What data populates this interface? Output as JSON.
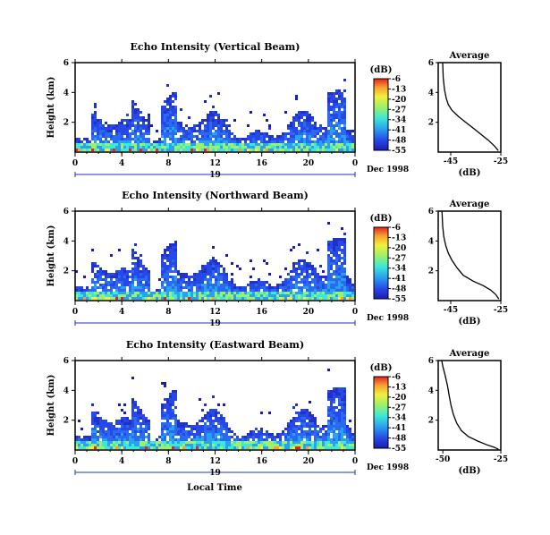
{
  "chart_data": [
    {
      "type": "heatmap",
      "title": "Echo Intensity (Vertical Beam)",
      "ylabel": "Height (km)",
      "xlabel": "",
      "x_ticks": [
        "0",
        "4",
        "8",
        "12",
        "16",
        "20",
        "0"
      ],
      "y_ticks": [
        "2",
        "4",
        "6"
      ],
      "date_label": "19",
      "month_label": "Dec 1998",
      "xlim": [
        0,
        24
      ],
      "ylim": [
        0,
        6
      ],
      "colorbar": {
        "label": "(dB)",
        "ticks": [
          "-6",
          "-13",
          "-20",
          "-27",
          "-34",
          "-41",
          "-48",
          "-55"
        ],
        "range": [
          -55,
          -6
        ]
      },
      "average": {
        "title": "Average",
        "xlabel": "(dB)",
        "x_ticks": [
          "-45",
          "-25"
        ],
        "y_ticks": [
          "2",
          "4",
          "6"
        ],
        "xlim": [
          -50,
          -25
        ],
        "ylim": [
          0,
          6
        ],
        "x": [
          -48.2,
          -48.0,
          -47.5,
          -46.8,
          -46.0,
          -44.5,
          -42.0,
          -39.0,
          -36.0,
          -33.0,
          -30.0,
          -27.5,
          -26.0
        ],
        "y": [
          6.0,
          5.0,
          4.2,
          3.6,
          3.2,
          2.8,
          2.4,
          2.0,
          1.6,
          1.2,
          0.8,
          0.4,
          0.1
        ]
      }
    },
    {
      "type": "heatmap",
      "title": "Echo Intensity (Northward Beam)",
      "ylabel": "Height (km)",
      "xlabel": "",
      "x_ticks": [
        "0",
        "4",
        "8",
        "12",
        "16",
        "20",
        "0"
      ],
      "y_ticks": [
        "2",
        "4",
        "6"
      ],
      "date_label": "19",
      "month_label": "Dec 1998",
      "xlim": [
        0,
        24
      ],
      "ylim": [
        0,
        6
      ],
      "colorbar": {
        "label": "(dB)",
        "ticks": [
          "-6",
          "-13",
          "-20",
          "-27",
          "-34",
          "-41",
          "-48",
          "-55"
        ],
        "range": [
          -55,
          -6
        ]
      },
      "average": {
        "title": "Average",
        "xlabel": "(dB)",
        "x_ticks": [
          "-45",
          "-25"
        ],
        "y_ticks": [
          "2",
          "4",
          "6"
        ],
        "xlim": [
          -50,
          -25
        ],
        "ylim": [
          0,
          6
        ],
        "x": [
          -48.5,
          -48.2,
          -47.8,
          -47.0,
          -46.0,
          -44.5,
          -42.5,
          -40.0,
          -36.0,
          -32.0,
          -29.0,
          -27.0,
          -25.8
        ],
        "y": [
          6.0,
          5.0,
          4.3,
          3.7,
          3.2,
          2.7,
          2.2,
          1.7,
          1.3,
          1.0,
          0.7,
          0.4,
          0.1
        ]
      }
    },
    {
      "type": "heatmap",
      "title": "Echo Intensity (Eastward Beam)",
      "ylabel": "Height (km)",
      "xlabel": "Local Time",
      "x_ticks": [
        "0",
        "4",
        "8",
        "12",
        "16",
        "20",
        "0"
      ],
      "y_ticks": [
        "2",
        "4",
        "6"
      ],
      "date_label": "19",
      "month_label": "Dec 1998",
      "xlim": [
        0,
        24
      ],
      "ylim": [
        0,
        6
      ],
      "colorbar": {
        "label": "(dB)",
        "ticks": [
          "-6",
          "-13",
          "-20",
          "-27",
          "-34",
          "-41",
          "-48",
          "-55"
        ],
        "range": [
          -55,
          -6
        ]
      },
      "average": {
        "title": "Average",
        "xlabel": "(dB)",
        "x_ticks": [
          "-50",
          "-25"
        ],
        "y_ticks": [
          "2",
          "4",
          "6"
        ],
        "xlim": [
          -52,
          -25
        ],
        "ylim": [
          0,
          6
        ],
        "x": [
          -50.5,
          -50.0,
          -49.0,
          -48.0,
          -47.2,
          -46.5,
          -45.5,
          -44.0,
          -42.0,
          -39.0,
          -35.0,
          -31.0,
          -28.0,
          -26.0
        ],
        "y": [
          6.0,
          5.6,
          5.0,
          4.3,
          3.6,
          3.0,
          2.4,
          1.8,
          1.3,
          0.9,
          0.6,
          0.35,
          0.2,
          0.05
        ]
      }
    }
  ]
}
